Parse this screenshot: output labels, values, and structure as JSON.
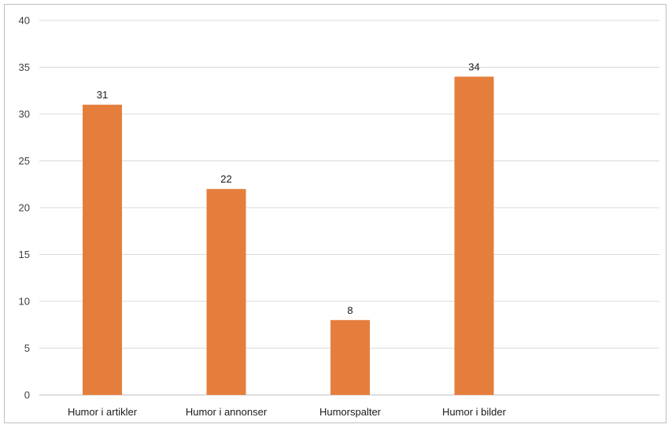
{
  "chart_data": {
    "type": "bar",
    "categories": [
      "Humor i artikler",
      "Humor i annonser",
      "Humorspalter",
      "Humor i bilder"
    ],
    "values": [
      31,
      22,
      8,
      34
    ],
    "data_labels": [
      "31",
      "22",
      "8",
      "34"
    ],
    "title": "",
    "xlabel": "",
    "ylabel": "",
    "ylim": [
      0,
      40
    ],
    "yticks": [
      0,
      5,
      10,
      15,
      20,
      25,
      30,
      35,
      40
    ],
    "grid": true,
    "legend": "none",
    "colors": {
      "bar": "#E57E3C",
      "grid": "#d9d9d9",
      "border": "#bfbfbf"
    }
  }
}
